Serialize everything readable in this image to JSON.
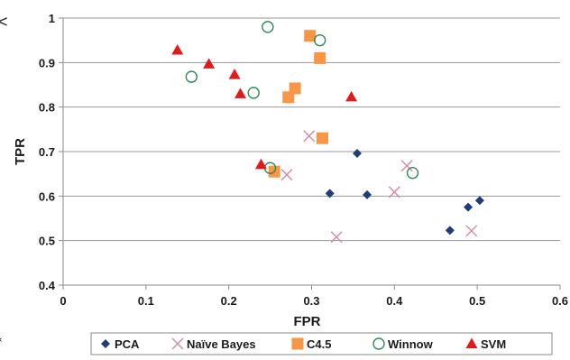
{
  "chart_data": {
    "type": "scatter",
    "xlabel": "FPR",
    "ylabel": "TPR",
    "xlim": [
      0,
      0.6
    ],
    "ylim": [
      0.4,
      1
    ],
    "x_ticks": [
      "0",
      "0.1",
      "0.2",
      "0.3",
      "0.4",
      "0.5",
      "0.6"
    ],
    "y_ticks": [
      "0.4",
      "0.5",
      "0.6",
      "0.7",
      "0.8",
      "0.9",
      "1"
    ],
    "grid": "horizontal",
    "legend_position": "bottom",
    "series": [
      {
        "name": "PCA",
        "marker": "diamond",
        "color": "#1f3d7a",
        "points": [
          [
            0.355,
            0.696
          ],
          [
            0.322,
            0.606
          ],
          [
            0.367,
            0.603
          ],
          [
            0.467,
            0.523
          ],
          [
            0.489,
            0.575
          ],
          [
            0.503,
            0.59
          ]
        ]
      },
      {
        "name": "Naïve Bayes",
        "marker": "x",
        "color": "#d08aa0",
        "points": [
          [
            0.297,
            0.735
          ],
          [
            0.27,
            0.648
          ],
          [
            0.33,
            0.508
          ],
          [
            0.4,
            0.609
          ],
          [
            0.415,
            0.668
          ],
          [
            0.493,
            0.522
          ]
        ]
      },
      {
        "name": "C4.5",
        "marker": "square",
        "color": "#f79646",
        "points": [
          [
            0.298,
            0.96
          ],
          [
            0.31,
            0.91
          ],
          [
            0.28,
            0.842
          ],
          [
            0.272,
            0.822
          ],
          [
            0.313,
            0.73
          ],
          [
            0.255,
            0.655
          ]
        ]
      },
      {
        "name": "Winnow",
        "marker": "circle",
        "color": "#2e8b57",
        "points": [
          [
            0.247,
            0.98
          ],
          [
            0.31,
            0.95
          ],
          [
            0.155,
            0.868
          ],
          [
            0.23,
            0.832
          ],
          [
            0.25,
            0.663
          ],
          [
            0.422,
            0.652
          ]
        ]
      },
      {
        "name": "SVM",
        "marker": "triangle",
        "color": "#e31a1c",
        "points": [
          [
            0.138,
            0.928
          ],
          [
            0.176,
            0.897
          ],
          [
            0.207,
            0.873
          ],
          [
            0.214,
            0.83
          ],
          [
            0.348,
            0.823
          ],
          [
            0.239,
            0.671
          ]
        ]
      }
    ]
  },
  "edge_glyphs": {
    "top_left": "<",
    "bottom_left": "‹"
  }
}
